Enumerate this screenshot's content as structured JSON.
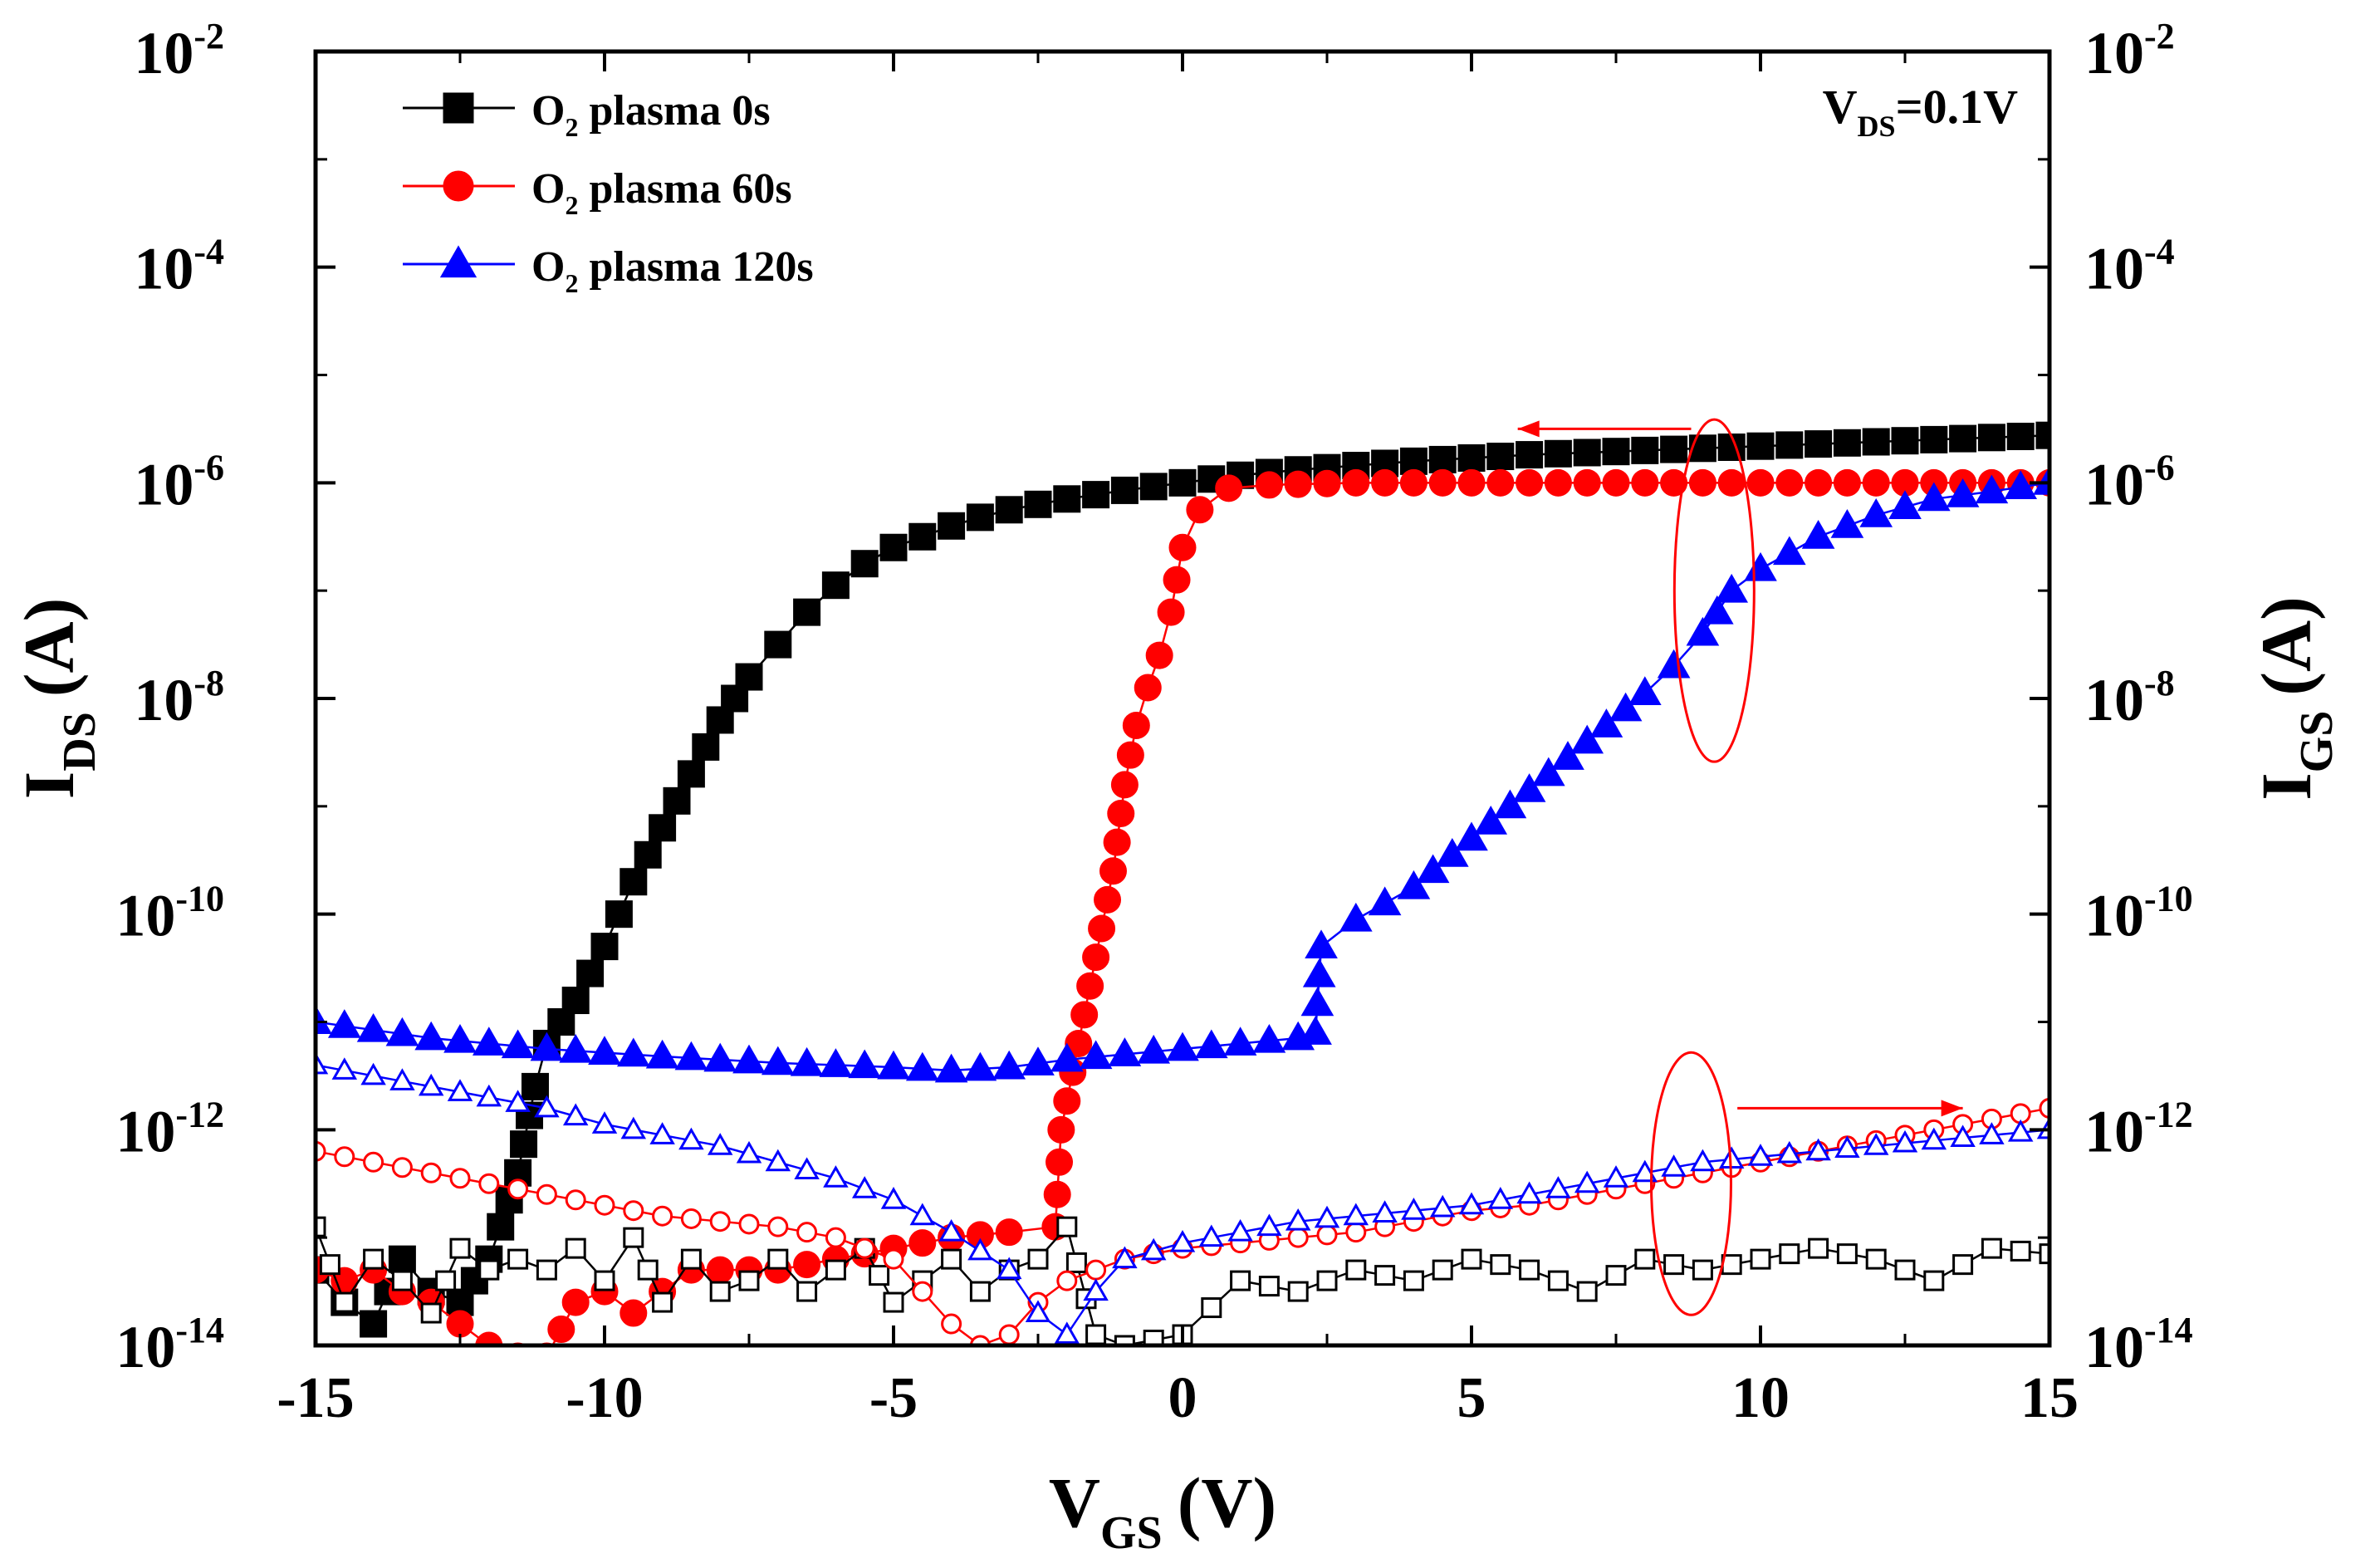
{
  "chart_data": {
    "type": "scatter",
    "title": "",
    "xlabel": {
      "main": "V",
      "sub": "GS",
      "unit": "(V)"
    },
    "ylabel": {
      "main": "I",
      "sub": "DS",
      "unit": "(A)"
    },
    "y2label": {
      "main": "I",
      "sub": "GS",
      "unit": "(A)"
    },
    "xlim": [
      -15,
      15
    ],
    "ylim_log10": [
      -14,
      -2
    ],
    "xticks": [
      -15,
      -10,
      -5,
      0,
      5,
      10,
      15
    ],
    "yticks": [
      {
        "base": "10",
        "exp": "-2",
        "log": -2
      },
      {
        "base": "10",
        "exp": "-4",
        "log": -4
      },
      {
        "base": "10",
        "exp": "-6",
        "log": -6
      },
      {
        "base": "10",
        "exp": "-8",
        "log": -8
      },
      {
        "base": "10",
        "exp": "-10",
        "log": -10
      },
      {
        "base": "10",
        "exp": "-12",
        "log": -12
      },
      {
        "base": "10",
        "exp": "-14",
        "log": -14
      }
    ],
    "annotation": {
      "main": "V",
      "sub": "DS",
      "rest": "=0.1V"
    },
    "legend": [
      {
        "prefix": "O",
        "sub": "2",
        "rest": " plasma 0s",
        "color": "#000000",
        "marker": "square"
      },
      {
        "prefix": "O",
        "sub": "2",
        "rest": " plasma 60s",
        "color": "#ff0000",
        "marker": "circle"
      },
      {
        "prefix": "O",
        "sub": "2",
        "rest": " plasma 120s",
        "color": "#0000ff",
        "marker": "triangle"
      }
    ],
    "series": [
      {
        "name": "O2 plasma 0s I_DS",
        "kind": "filled",
        "marker": "square",
        "color": "#000000",
        "points": [
          [
            -15,
            -13.3
          ],
          [
            -14.5,
            -13.6
          ],
          [
            -14,
            -13.8
          ],
          [
            -13.5,
            -13.2
          ],
          [
            -13,
            -13.5
          ],
          [
            -12.5,
            -13.6
          ],
          [
            -12,
            -13.2
          ],
          [
            -11.8,
            -12.9
          ],
          [
            -11.5,
            -12.4
          ],
          [
            -11.2,
            -11.6
          ],
          [
            -11,
            -11.2
          ],
          [
            -10.5,
            -10.8
          ],
          [
            -10,
            -10.3
          ],
          [
            -9.5,
            -9.7
          ],
          [
            -9,
            -9.2
          ],
          [
            -8.5,
            -8.7
          ],
          [
            -8,
            -8.2
          ],
          [
            -7.5,
            -7.8
          ],
          [
            -7,
            -7.5
          ],
          [
            -6.5,
            -7.2
          ],
          [
            -6,
            -6.95
          ],
          [
            -5.5,
            -6.75
          ],
          [
            -5,
            -6.6
          ],
          [
            -4.5,
            -6.5
          ],
          [
            -4,
            -6.4
          ],
          [
            -3.5,
            -6.32
          ],
          [
            -3,
            -6.25
          ],
          [
            -2,
            -6.15
          ],
          [
            -1,
            -6.07
          ],
          [
            0,
            -6.0
          ],
          [
            1,
            -5.93
          ],
          [
            2,
            -5.88
          ],
          [
            3,
            -5.84
          ],
          [
            4,
            -5.8
          ],
          [
            5,
            -5.77
          ],
          [
            6,
            -5.74
          ],
          [
            7,
            -5.72
          ],
          [
            8,
            -5.7
          ],
          [
            9,
            -5.68
          ],
          [
            10,
            -5.66
          ],
          [
            11,
            -5.64
          ],
          [
            12,
            -5.62
          ],
          [
            13,
            -5.6
          ],
          [
            14,
            -5.58
          ],
          [
            15,
            -5.56
          ]
        ]
      },
      {
        "name": "O2 plasma 60s I_DS",
        "kind": "filled",
        "marker": "circle",
        "color": "#ff0000",
        "points": [
          [
            -15,
            -13.3
          ],
          [
            -14.5,
            -13.4
          ],
          [
            -14,
            -13.3
          ],
          [
            -13.5,
            -13.5
          ],
          [
            -13,
            -13.6
          ],
          [
            -12.5,
            -13.8
          ],
          [
            -12,
            -14.0
          ],
          [
            -11.5,
            -14.1
          ],
          [
            -11,
            -14.1
          ],
          [
            -10.5,
            -13.6
          ],
          [
            -10,
            -13.5
          ],
          [
            -9.5,
            -13.7
          ],
          [
            -9,
            -13.5
          ],
          [
            -8.5,
            -13.3
          ],
          [
            -8,
            -13.3
          ],
          [
            -7,
            -13.3
          ],
          [
            -6,
            -13.2
          ],
          [
            -5,
            -13.1
          ],
          [
            -4,
            -13.0
          ],
          [
            -3,
            -12.95
          ],
          [
            -2.2,
            -12.9
          ],
          [
            -2.1,
            -12.0
          ],
          [
            -1.8,
            -11.2
          ],
          [
            -1.5,
            -10.4
          ],
          [
            -1.2,
            -9.6
          ],
          [
            -1,
            -8.8
          ],
          [
            -0.8,
            -8.25
          ],
          [
            -0.6,
            -7.9
          ],
          [
            -0.4,
            -7.6
          ],
          [
            -0.2,
            -7.2
          ],
          [
            0,
            -6.6
          ],
          [
            0.3,
            -6.25
          ],
          [
            0.8,
            -6.05
          ],
          [
            1.5,
            -6.02
          ],
          [
            3,
            -6.0
          ],
          [
            5,
            -6.0
          ],
          [
            7,
            -6.0
          ],
          [
            9,
            -6.0
          ],
          [
            11,
            -6.0
          ],
          [
            13,
            -6.0
          ],
          [
            15,
            -6.0
          ]
        ]
      },
      {
        "name": "O2 plasma 120s I_DS",
        "kind": "filled",
        "marker": "triangle",
        "color": "#0000ff",
        "points": [
          [
            -15,
            -11.0
          ],
          [
            -13,
            -11.15
          ],
          [
            -11,
            -11.25
          ],
          [
            -9,
            -11.32
          ],
          [
            -7,
            -11.38
          ],
          [
            -5,
            -11.42
          ],
          [
            -4,
            -11.45
          ],
          [
            -3,
            -11.42
          ],
          [
            -2,
            -11.35
          ],
          [
            -1,
            -11.3
          ],
          [
            0,
            -11.25
          ],
          [
            1,
            -11.2
          ],
          [
            2,
            -11.15
          ],
          [
            2.3,
            -11.1
          ],
          [
            2.4,
            -10.3
          ],
          [
            3,
            -10.05
          ],
          [
            4,
            -9.75
          ],
          [
            5,
            -9.3
          ],
          [
            6,
            -8.85
          ],
          [
            7,
            -8.4
          ],
          [
            8,
            -7.95
          ],
          [
            8.5,
            -7.7
          ],
          [
            9,
            -7.4
          ],
          [
            9.5,
            -7.0
          ],
          [
            10,
            -6.8
          ],
          [
            11,
            -6.5
          ],
          [
            12,
            -6.3
          ],
          [
            13,
            -6.15
          ],
          [
            14,
            -6.08
          ],
          [
            15,
            -6.0
          ]
        ]
      },
      {
        "name": "O2 plasma 0s I_GS",
        "kind": "open",
        "marker": "square",
        "color": "#000000",
        "points": [
          [
            -15,
            -12.9
          ],
          [
            -14.5,
            -13.6
          ],
          [
            -14,
            -13.2
          ],
          [
            -13.5,
            -13.4
          ],
          [
            -13,
            -13.7
          ],
          [
            -12.5,
            -13.1
          ],
          [
            -12,
            -13.3
          ],
          [
            -11.5,
            -13.2
          ],
          [
            -11,
            -13.3
          ],
          [
            -10.5,
            -13.1
          ],
          [
            -10,
            -13.4
          ],
          [
            -9.5,
            -13.0
          ],
          [
            -9,
            -13.6
          ],
          [
            -8.5,
            -13.2
          ],
          [
            -8,
            -13.5
          ],
          [
            -7.5,
            -13.4
          ],
          [
            -7,
            -13.2
          ],
          [
            -6.5,
            -13.5
          ],
          [
            -6,
            -13.3
          ],
          [
            -5.5,
            -13.1
          ],
          [
            -5,
            -13.6
          ],
          [
            -4.5,
            -13.4
          ],
          [
            -4,
            -13.2
          ],
          [
            -3.5,
            -13.5
          ],
          [
            -3,
            -13.3
          ],
          [
            -2.5,
            -13.2
          ],
          [
            -2,
            -12.9
          ],
          [
            -1.5,
            -13.9
          ],
          [
            -1,
            -14.0
          ],
          [
            0,
            -13.9
          ],
          [
            1,
            -13.4
          ],
          [
            2,
            -13.5
          ],
          [
            3,
            -13.3
          ],
          [
            4,
            -13.4
          ],
          [
            5,
            -13.2
          ],
          [
            6,
            -13.3
          ],
          [
            7,
            -13.5
          ],
          [
            8,
            -13.2
          ],
          [
            9,
            -13.3
          ],
          [
            10,
            -13.2
          ],
          [
            11,
            -13.1
          ],
          [
            12,
            -13.2
          ],
          [
            13,
            -13.4
          ],
          [
            14,
            -13.1
          ],
          [
            15,
            -13.15
          ]
        ]
      },
      {
        "name": "O2 plasma 60s I_GS",
        "kind": "open",
        "marker": "circle",
        "color": "#ff0000",
        "points": [
          [
            -15,
            -12.2
          ],
          [
            -14,
            -12.3
          ],
          [
            -13,
            -12.4
          ],
          [
            -12,
            -12.5
          ],
          [
            -11,
            -12.6
          ],
          [
            -10,
            -12.7
          ],
          [
            -9,
            -12.8
          ],
          [
            -8,
            -12.85
          ],
          [
            -7,
            -12.9
          ],
          [
            -6,
            -13.0
          ],
          [
            -5,
            -13.2
          ],
          [
            -4.5,
            -13.5
          ],
          [
            -4,
            -13.8
          ],
          [
            -3.5,
            -14.0
          ],
          [
            -3,
            -13.9
          ],
          [
            -2.5,
            -13.6
          ],
          [
            -2,
            -13.4
          ],
          [
            -1.5,
            -13.3
          ],
          [
            -1,
            -13.2
          ],
          [
            0,
            -13.1
          ],
          [
            1,
            -13.05
          ],
          [
            2,
            -13.0
          ],
          [
            3,
            -12.95
          ],
          [
            4,
            -12.85
          ],
          [
            5,
            -12.75
          ],
          [
            6,
            -12.7
          ],
          [
            7,
            -12.6
          ],
          [
            8,
            -12.5
          ],
          [
            9,
            -12.4
          ],
          [
            10,
            -12.3
          ],
          [
            11,
            -12.2
          ],
          [
            12,
            -12.1
          ],
          [
            13,
            -12.0
          ],
          [
            14,
            -11.9
          ],
          [
            15,
            -11.8
          ]
        ]
      },
      {
        "name": "O2 plasma 120s I_GS",
        "kind": "open",
        "marker": "triangle",
        "color": "#0000ff",
        "points": [
          [
            -15,
            -11.4
          ],
          [
            -14,
            -11.5
          ],
          [
            -13,
            -11.6
          ],
          [
            -12,
            -11.7
          ],
          [
            -11,
            -11.8
          ],
          [
            -10,
            -11.95
          ],
          [
            -9,
            -12.05
          ],
          [
            -8,
            -12.15
          ],
          [
            -7,
            -12.3
          ],
          [
            -6,
            -12.45
          ],
          [
            -5,
            -12.65
          ],
          [
            -4,
            -12.95
          ],
          [
            -3,
            -13.3
          ],
          [
            -2.5,
            -13.7
          ],
          [
            -2,
            -13.9
          ],
          [
            -1.5,
            -13.5
          ],
          [
            -1,
            -13.2
          ],
          [
            0,
            -13.05
          ],
          [
            1,
            -12.95
          ],
          [
            2,
            -12.85
          ],
          [
            3,
            -12.8
          ],
          [
            4,
            -12.75
          ],
          [
            5,
            -12.7
          ],
          [
            6,
            -12.6
          ],
          [
            7,
            -12.5
          ],
          [
            8,
            -12.4
          ],
          [
            9,
            -12.3
          ],
          [
            10,
            -12.25
          ],
          [
            11,
            -12.2
          ],
          [
            12,
            -12.15
          ],
          [
            13,
            -12.1
          ],
          [
            14,
            -12.05
          ],
          [
            15,
            -12.0
          ]
        ]
      }
    ]
  }
}
